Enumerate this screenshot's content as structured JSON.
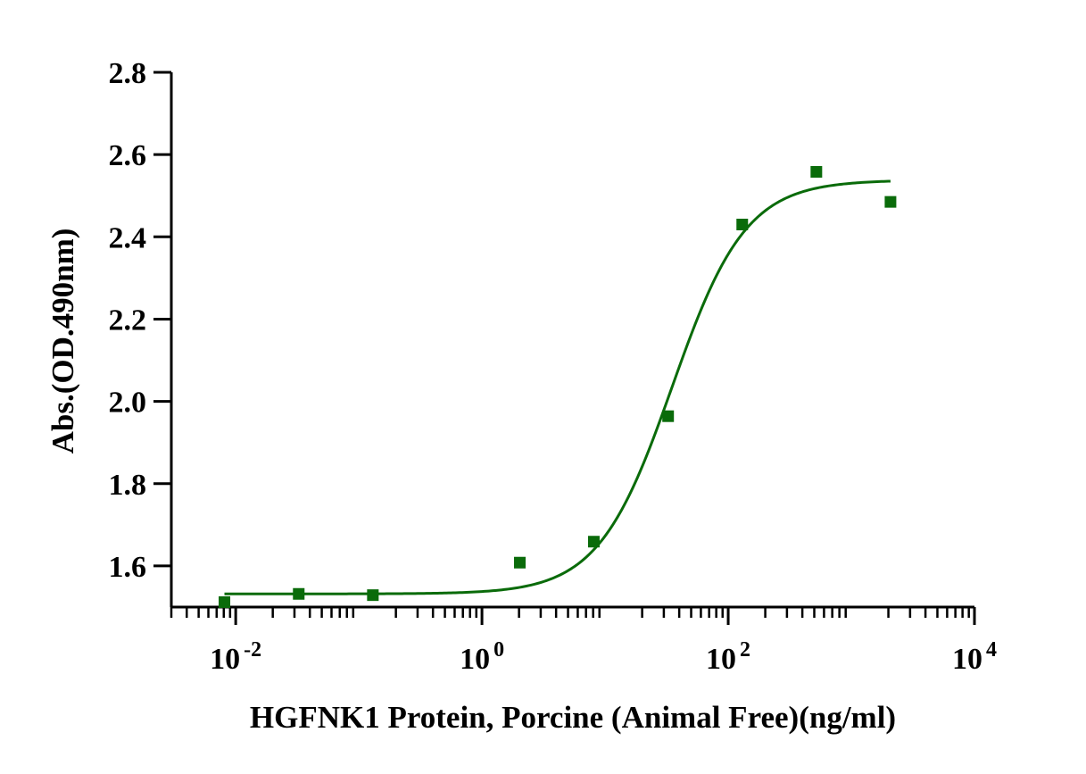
{
  "chart_data": {
    "type": "scatter",
    "xlabel": "HGFNK1 Protein, Porcine (Animal Free)(ng/ml)",
    "ylabel": "Abs.(OD.490nm)",
    "x_scale": "log10",
    "xlim": [
      0.003,
      10000
    ],
    "ylim": [
      1.5,
      2.8
    ],
    "x_ticks": [
      {
        "value": 0.01,
        "base": "10",
        "exp": "-2"
      },
      {
        "value": 1,
        "base": "10",
        "exp": "0"
      },
      {
        "value": 100,
        "base": "10",
        "exp": "2"
      },
      {
        "value": 10000,
        "base": "10",
        "exp": "4"
      }
    ],
    "y_ticks": [
      "1.6",
      "1.8",
      "2.0",
      "2.2",
      "2.4",
      "2.6",
      "2.8"
    ],
    "grid": false,
    "colors": {
      "series": "#0a6b0a"
    },
    "series": [
      {
        "marker": "square",
        "x": [
          0.0081,
          0.0325,
          0.13,
          2.03,
          8.1,
          32.5,
          130,
          520,
          2080
        ],
        "y": [
          1.512,
          1.532,
          1.529,
          1.608,
          1.659,
          1.964,
          2.43,
          2.558,
          2.485
        ]
      }
    ],
    "fit": {
      "type": "4PL",
      "bottom": 1.532,
      "top": 2.538,
      "ec50": 35,
      "hill": 1.45,
      "x_range": [
        0.0081,
        2080
      ]
    }
  }
}
